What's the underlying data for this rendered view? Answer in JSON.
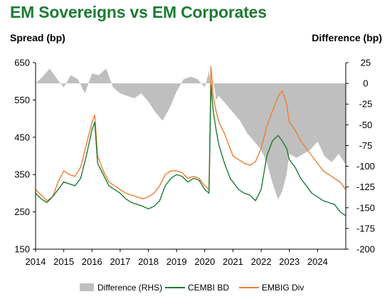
{
  "chart_data": {
    "type": "line",
    "title": "EM Sovereigns vs EM Corporates",
    "ylabel": "Spread (bp)",
    "y2label": "Difference (bp)",
    "x_tick_labels": [
      "2014",
      "2015",
      "2016",
      "2017",
      "2018",
      "2019",
      "2020",
      "2021",
      "2022",
      "2023",
      "2024"
    ],
    "x_range": [
      2014.0,
      2025.0
    ],
    "ylim": [
      150,
      650
    ],
    "y_ticks": [
      150,
      250,
      350,
      450,
      550,
      650
    ],
    "y2lim": [
      -200,
      25
    ],
    "y2_ticks": [
      25,
      0,
      -25,
      -50,
      -75,
      -100,
      -125,
      -150,
      -175,
      -200
    ],
    "grid": false,
    "legend_position": "bottom",
    "colors": {
      "difference": "#bfbfbf",
      "cembi": "#1e7b34",
      "embig": "#ed7d31",
      "title": "#1e7b34"
    },
    "series": [
      {
        "name": "Difference (RHS)",
        "type": "area",
        "axis": "right",
        "x": [
          2014.0,
          2014.25,
          2014.5,
          2014.75,
          2015.0,
          2015.25,
          2015.5,
          2015.75,
          2016.0,
          2016.25,
          2016.5,
          2016.75,
          2017.0,
          2017.25,
          2017.5,
          2017.75,
          2018.0,
          2018.25,
          2018.5,
          2018.75,
          2019.0,
          2019.25,
          2019.5,
          2019.75,
          2020.0,
          2020.15,
          2020.25,
          2020.3,
          2020.4,
          2020.5,
          2020.75,
          2021.0,
          2021.25,
          2021.5,
          2021.75,
          2022.0,
          2022.2,
          2022.4,
          2022.6,
          2022.75,
          2022.9,
          2023.0,
          2023.25,
          2023.5,
          2023.75,
          2024.0,
          2024.25,
          2024.5,
          2024.75,
          2025.0
        ],
        "values": [
          0,
          8,
          18,
          6,
          -5,
          10,
          5,
          -12,
          12,
          10,
          18,
          -5,
          -12,
          -15,
          -18,
          -12,
          -22,
          -35,
          -45,
          -30,
          -10,
          5,
          8,
          5,
          -5,
          15,
          -12,
          5,
          -20,
          -15,
          -25,
          -35,
          -45,
          -60,
          -70,
          -80,
          -95,
          -120,
          -140,
          -130,
          -110,
          -85,
          -90,
          -85,
          -80,
          -70,
          -88,
          -95,
          -85,
          -98
        ]
      },
      {
        "name": "CEMBI BD",
        "axis": "left",
        "x": [
          2014.0,
          2014.2,
          2014.4,
          2014.6,
          2014.8,
          2015.0,
          2015.2,
          2015.4,
          2015.6,
          2015.8,
          2016.0,
          2016.1,
          2016.2,
          2016.4,
          2016.6,
          2016.8,
          2017.0,
          2017.2,
          2017.4,
          2017.6,
          2017.8,
          2018.0,
          2018.2,
          2018.4,
          2018.6,
          2018.8,
          2019.0,
          2019.2,
          2019.4,
          2019.6,
          2019.8,
          2020.0,
          2020.15,
          2020.22,
          2020.3,
          2020.4,
          2020.5,
          2020.7,
          2020.9,
          2021.0,
          2021.2,
          2021.4,
          2021.6,
          2021.8,
          2022.0,
          2022.2,
          2022.4,
          2022.6,
          2022.75,
          2022.9,
          2023.0,
          2023.2,
          2023.4,
          2023.6,
          2023.8,
          2024.0,
          2024.2,
          2024.4,
          2024.6,
          2024.8,
          2025.0
        ],
        "values": [
          300,
          285,
          275,
          290,
          310,
          330,
          325,
          320,
          340,
          400,
          470,
          490,
          380,
          350,
          320,
          310,
          300,
          285,
          275,
          270,
          265,
          258,
          265,
          280,
          320,
          340,
          350,
          345,
          330,
          340,
          335,
          310,
          300,
          590,
          520,
          470,
          430,
          380,
          340,
          330,
          310,
          300,
          295,
          280,
          310,
          400,
          440,
          455,
          440,
          420,
          390,
          370,
          340,
          320,
          300,
          290,
          280,
          275,
          270,
          250,
          240
        ]
      },
      {
        "name": "EMBIG Div",
        "axis": "left",
        "x": [
          2014.0,
          2014.2,
          2014.4,
          2014.6,
          2014.8,
          2015.0,
          2015.2,
          2015.4,
          2015.6,
          2015.8,
          2016.0,
          2016.1,
          2016.2,
          2016.4,
          2016.6,
          2016.8,
          2017.0,
          2017.2,
          2017.4,
          2017.6,
          2017.8,
          2018.0,
          2018.2,
          2018.4,
          2018.6,
          2018.8,
          2019.0,
          2019.2,
          2019.4,
          2019.6,
          2019.8,
          2020.0,
          2020.15,
          2020.22,
          2020.3,
          2020.4,
          2020.5,
          2020.7,
          2020.9,
          2021.0,
          2021.2,
          2021.4,
          2021.6,
          2021.8,
          2022.0,
          2022.2,
          2022.4,
          2022.6,
          2022.75,
          2022.9,
          2023.0,
          2023.2,
          2023.4,
          2023.6,
          2023.8,
          2024.0,
          2024.2,
          2024.4,
          2024.6,
          2024.8,
          2025.0
        ],
        "values": [
          310,
          295,
          280,
          290,
          330,
          360,
          350,
          345,
          370,
          430,
          490,
          510,
          400,
          360,
          330,
          320,
          310,
          300,
          295,
          290,
          285,
          290,
          300,
          320,
          350,
          360,
          360,
          355,
          340,
          345,
          340,
          320,
          310,
          640,
          560,
          520,
          490,
          460,
          420,
          400,
          390,
          380,
          375,
          385,
          420,
          480,
          520,
          560,
          575,
          540,
          490,
          470,
          440,
          420,
          400,
          380,
          360,
          350,
          340,
          330,
          310
        ]
      }
    ]
  }
}
